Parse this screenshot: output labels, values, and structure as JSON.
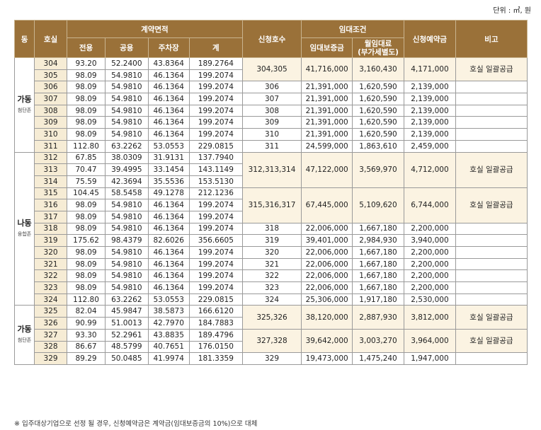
{
  "unit": "단위 : ㎡, 원",
  "headers": {
    "dong": "동",
    "hosil": "호실",
    "area_group": "계약면적",
    "area_cols": [
      "전용",
      "공용",
      "주차장",
      "계"
    ],
    "apply": "신청호수",
    "lease_group": "임대조건",
    "deposit": "임대보증금",
    "rent": "월임대료\n(부가세별도)",
    "reserve": "신청예약금",
    "note": "비고"
  },
  "sections": [
    {
      "dong": "가동",
      "zone": "첨단존",
      "rows": [
        {
          "hosil": "304",
          "area": [
            "93.20",
            "52.2400",
            "43.8364",
            "189.2764"
          ]
        },
        {
          "hosil": "305",
          "area": [
            "98.09",
            "54.9810",
            "46.1364",
            "199.2074"
          ]
        },
        {
          "hosil": "306",
          "area": [
            "98.09",
            "54.9810",
            "46.1364",
            "199.2074"
          ]
        },
        {
          "hosil": "307",
          "area": [
            "98.09",
            "54.9810",
            "46.1364",
            "199.2074"
          ]
        },
        {
          "hosil": "308",
          "area": [
            "98.09",
            "54.9810",
            "46.1364",
            "199.2074"
          ]
        },
        {
          "hosil": "309",
          "area": [
            "98.09",
            "54.9810",
            "46.1364",
            "199.2074"
          ]
        },
        {
          "hosil": "310",
          "area": [
            "98.09",
            "54.9810",
            "46.1364",
            "199.2074"
          ]
        },
        {
          "hosil": "311",
          "area": [
            "112.80",
            "63.2262",
            "53.0553",
            "229.0815"
          ]
        }
      ],
      "groups": [
        {
          "span": 2,
          "apply": "304,305",
          "deposit": "41,716,000",
          "rent": "3,160,430",
          "reserve": "4,171,000",
          "note": "호실 일괄공급",
          "merged": true
        },
        {
          "span": 1,
          "apply": "306",
          "deposit": "21,391,000",
          "rent": "1,620,590",
          "reserve": "2,139,000",
          "note": ""
        },
        {
          "span": 1,
          "apply": "307",
          "deposit": "21,391,000",
          "rent": "1,620,590",
          "reserve": "2,139,000",
          "note": ""
        },
        {
          "span": 1,
          "apply": "308",
          "deposit": "21,391,000",
          "rent": "1,620,590",
          "reserve": "2,139,000",
          "note": ""
        },
        {
          "span": 1,
          "apply": "309",
          "deposit": "21,391,000",
          "rent": "1,620,590",
          "reserve": "2,139,000",
          "note": ""
        },
        {
          "span": 1,
          "apply": "310",
          "deposit": "21,391,000",
          "rent": "1,620,590",
          "reserve": "2,139,000",
          "note": ""
        },
        {
          "span": 1,
          "apply": "311",
          "deposit": "24,599,000",
          "rent": "1,863,610",
          "reserve": "2,459,000",
          "note": ""
        }
      ]
    },
    {
      "dong": "나동",
      "zone": "융합존",
      "rows": [
        {
          "hosil": "312",
          "area": [
            "67.85",
            "38.0309",
            "31.9131",
            "137.7940"
          ]
        },
        {
          "hosil": "313",
          "area": [
            "70.47",
            "39.4995",
            "33.1454",
            "143.1149"
          ]
        },
        {
          "hosil": "314",
          "area": [
            "75.59",
            "42.3694",
            "35.5536",
            "153.5130"
          ]
        },
        {
          "hosil": "315",
          "area": [
            "104.45",
            "58.5458",
            "49.1278",
            "212.1236"
          ]
        },
        {
          "hosil": "316",
          "area": [
            "98.09",
            "54.9810",
            "46.1364",
            "199.2074"
          ]
        },
        {
          "hosil": "317",
          "area": [
            "98.09",
            "54.9810",
            "46.1364",
            "199.2074"
          ]
        },
        {
          "hosil": "318",
          "area": [
            "98.09",
            "54.9810",
            "46.1364",
            "199.2074"
          ]
        },
        {
          "hosil": "319",
          "area": [
            "175.62",
            "98.4379",
            "82.6026",
            "356.6605"
          ]
        },
        {
          "hosil": "320",
          "area": [
            "98.09",
            "54.9810",
            "46.1364",
            "199.2074"
          ]
        },
        {
          "hosil": "321",
          "area": [
            "98.09",
            "54.9810",
            "46.1364",
            "199.2074"
          ]
        },
        {
          "hosil": "322",
          "area": [
            "98.09",
            "54.9810",
            "46.1364",
            "199.2074"
          ]
        },
        {
          "hosil": "323",
          "area": [
            "98.09",
            "54.9810",
            "46.1364",
            "199.2074"
          ]
        },
        {
          "hosil": "324",
          "area": [
            "112.80",
            "63.2262",
            "53.0553",
            "229.0815"
          ]
        }
      ],
      "groups": [
        {
          "span": 3,
          "apply": "312,313,314",
          "deposit": "47,122,000",
          "rent": "3,569,970",
          "reserve": "4,712,000",
          "note": "호실 일괄공급",
          "merged": true
        },
        {
          "span": 3,
          "apply": "315,316,317",
          "deposit": "67,445,000",
          "rent": "5,109,620",
          "reserve": "6,744,000",
          "note": "호실 일괄공급",
          "merged": true
        },
        {
          "span": 1,
          "apply": "318",
          "deposit": "22,006,000",
          "rent": "1,667,180",
          "reserve": "2,200,000",
          "note": ""
        },
        {
          "span": 1,
          "apply": "319",
          "deposit": "39,401,000",
          "rent": "2,984,930",
          "reserve": "3,940,000",
          "note": ""
        },
        {
          "span": 1,
          "apply": "320",
          "deposit": "22,006,000",
          "rent": "1,667,180",
          "reserve": "2,200,000",
          "note": ""
        },
        {
          "span": 1,
          "apply": "321",
          "deposit": "22,006,000",
          "rent": "1,667,180",
          "reserve": "2,200,000",
          "note": ""
        },
        {
          "span": 1,
          "apply": "322",
          "deposit": "22,006,000",
          "rent": "1,667,180",
          "reserve": "2,200,000",
          "note": ""
        },
        {
          "span": 1,
          "apply": "323",
          "deposit": "22,006,000",
          "rent": "1,667,180",
          "reserve": "2,200,000",
          "note": ""
        },
        {
          "span": 1,
          "apply": "324",
          "deposit": "25,306,000",
          "rent": "1,917,180",
          "reserve": "2,530,000",
          "note": ""
        }
      ]
    },
    {
      "dong": "가동",
      "zone": "첨단존",
      "rows": [
        {
          "hosil": "325",
          "area": [
            "82.04",
            "45.9847",
            "38.5873",
            "166.6120"
          ]
        },
        {
          "hosil": "326",
          "area": [
            "90.99",
            "51.0013",
            "42.7970",
            "184.7883"
          ]
        },
        {
          "hosil": "327",
          "area": [
            "93.30",
            "52.2961",
            "43.8835",
            "189.4796"
          ]
        },
        {
          "hosil": "328",
          "area": [
            "86.67",
            "48.5799",
            "40.7651",
            "176.0150"
          ]
        },
        {
          "hosil": "329",
          "area": [
            "89.29",
            "50.0485",
            "41.9974",
            "181.3359"
          ]
        }
      ],
      "groups": [
        {
          "span": 2,
          "apply": "325,326",
          "deposit": "38,120,000",
          "rent": "2,887,930",
          "reserve": "3,812,000",
          "note": "호실 일괄공급",
          "merged": true
        },
        {
          "span": 2,
          "apply": "327,328",
          "deposit": "39,642,000",
          "rent": "3,003,270",
          "reserve": "3,964,000",
          "note": "호실 일괄공급",
          "merged": true
        },
        {
          "span": 1,
          "apply": "329",
          "deposit": "19,473,000",
          "rent": "1,475,240",
          "reserve": "1,947,000",
          "note": ""
        }
      ]
    }
  ],
  "footnote": "※ 입주대상기업으로 선정 될 경우, 신청예약금은 계약금(임대보증금의 10%)으로 대체"
}
